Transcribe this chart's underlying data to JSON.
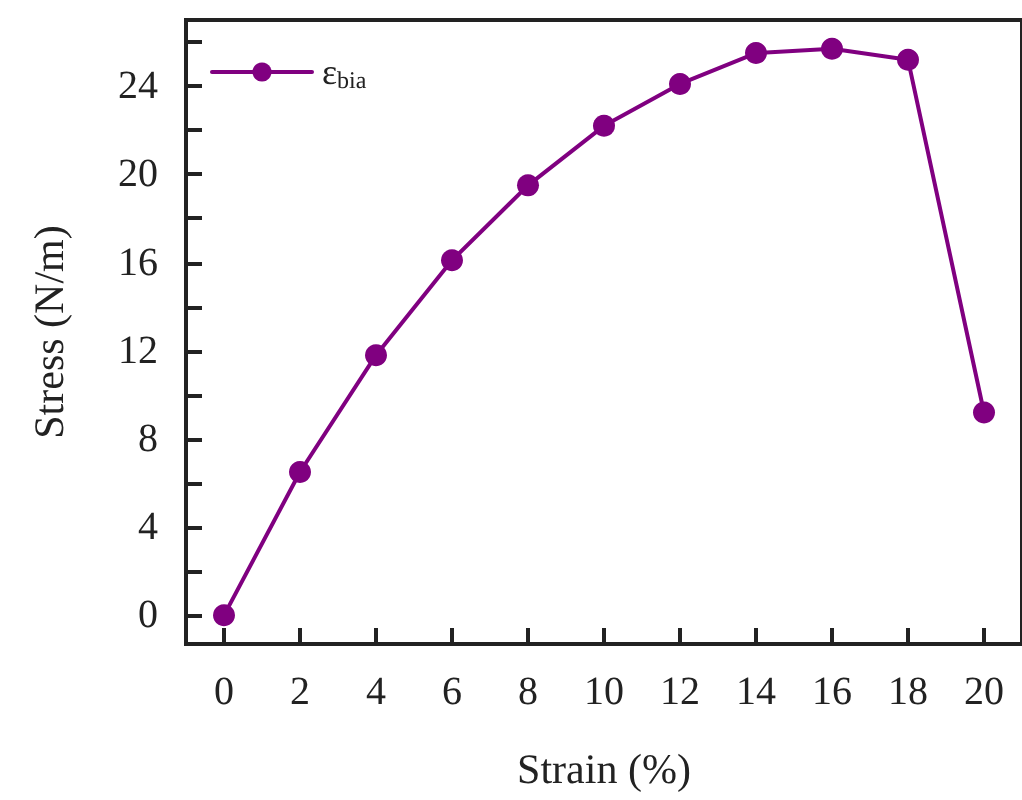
{
  "chart_data": {
    "type": "line",
    "xlabel": "Strain (%)",
    "ylabel": "Stress (N/m)",
    "x": [
      0,
      2,
      4,
      6,
      8,
      10,
      12,
      14,
      16,
      18,
      20
    ],
    "series": [
      {
        "name": "ε$_{bia}$",
        "color": "#800080",
        "values": [
          0,
          6.5,
          11.8,
          16.1,
          19.5,
          22.2,
          24.1,
          25.5,
          25.7,
          25.2,
          9.2
        ]
      }
    ],
    "xlim": [
      -1,
      21
    ],
    "xticks": [
      0,
      2,
      4,
      6,
      8,
      10,
      12,
      14,
      16,
      18,
      20
    ],
    "ylim": [
      -1.3,
      27
    ],
    "yticks": [
      0,
      {
        "value": 2,
        "label": null
      },
      4,
      {
        "value": 6,
        "label": null
      },
      8,
      {
        "value": 10,
        "label": null
      },
      12,
      {
        "value": 14,
        "label": null
      },
      16,
      {
        "value": 18,
        "label": null
      },
      20,
      {
        "value": 22,
        "label": null
      },
      24,
      {
        "value": 26,
        "label": null
      }
    ],
    "grid": false,
    "legend": "top left",
    "marker": "circle",
    "line_style": "solid"
  }
}
